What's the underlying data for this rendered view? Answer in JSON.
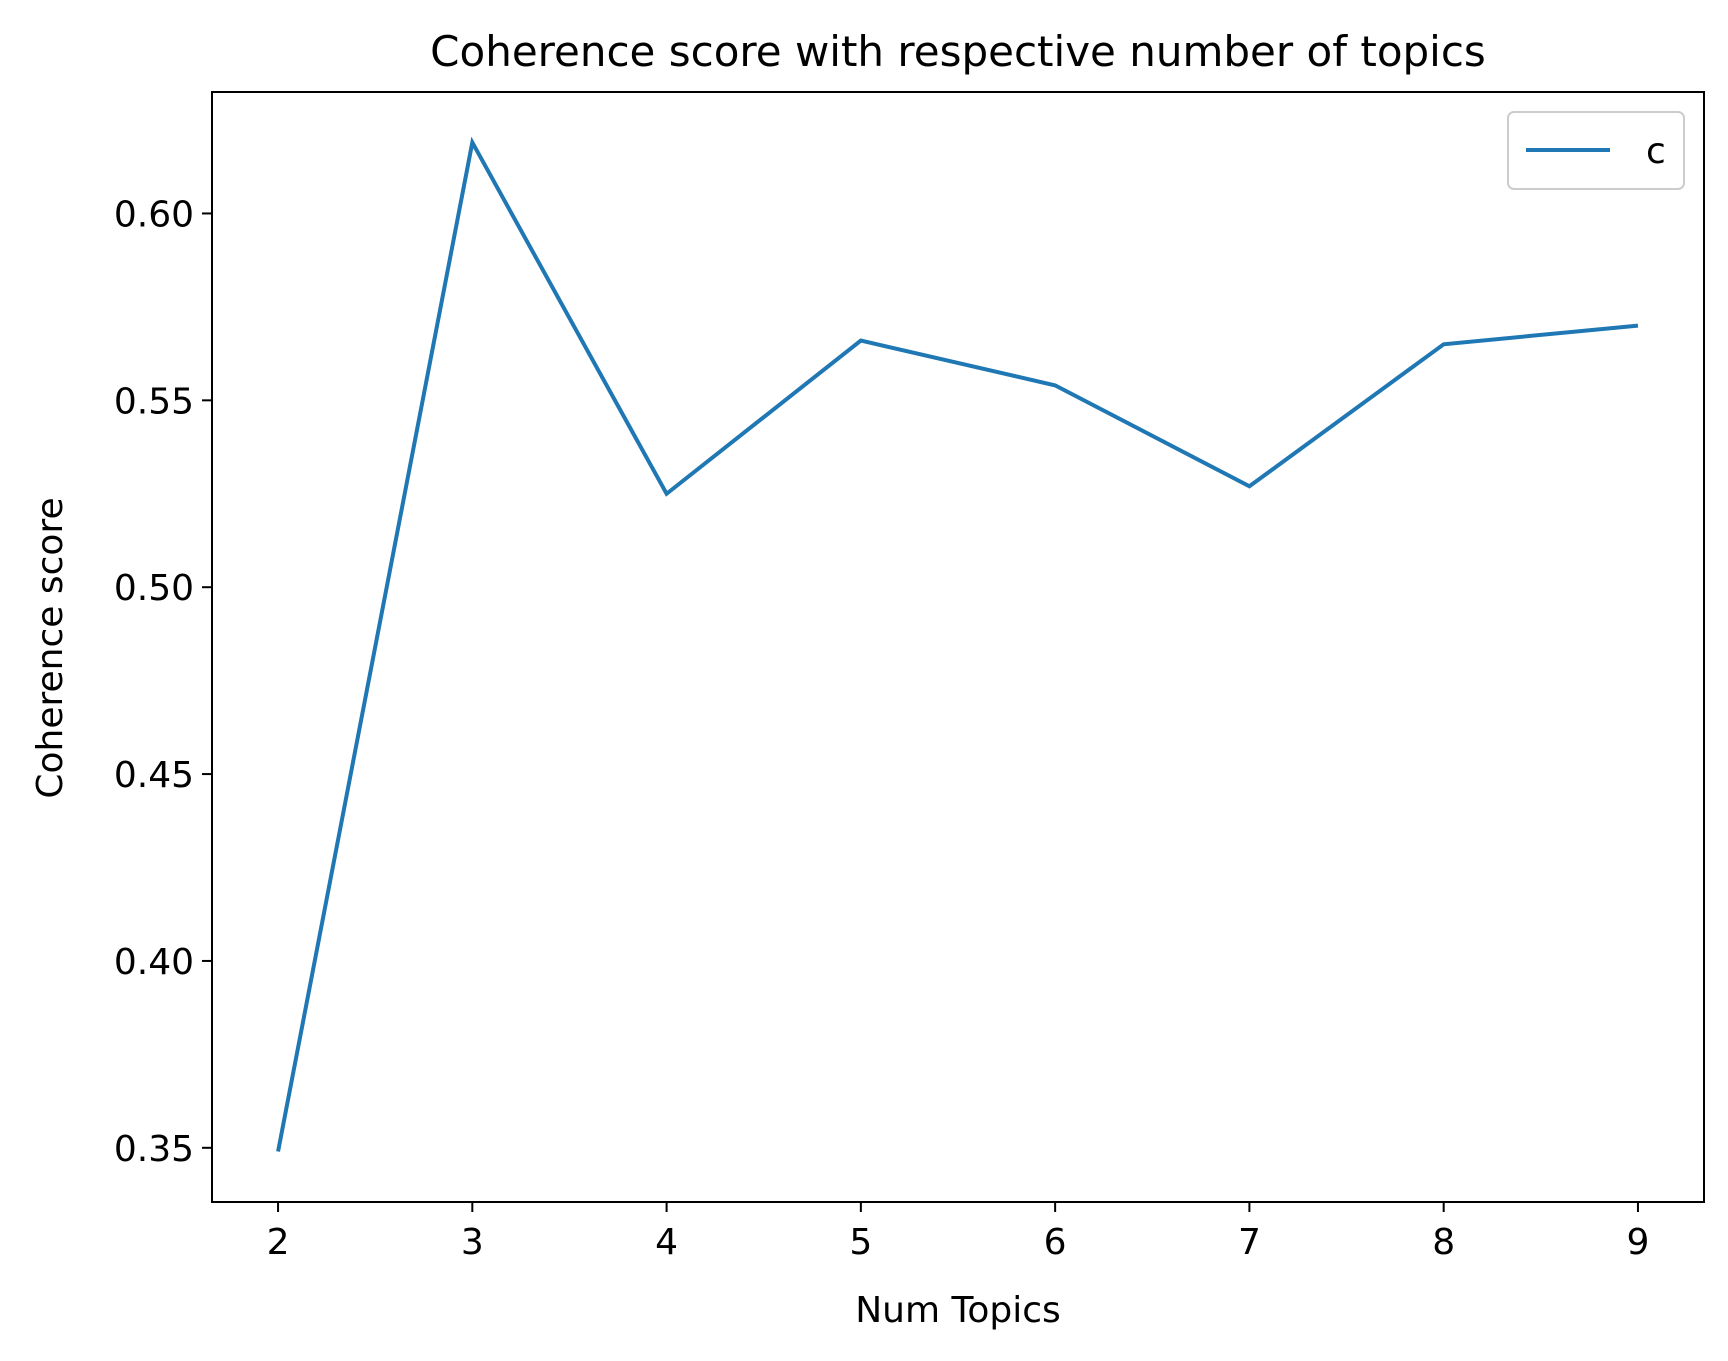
{
  "chart_data": {
    "type": "line",
    "title": "Coherence score with respective number of topics",
    "xlabel": "Num Topics",
    "ylabel": "Coherence score",
    "x": [
      2,
      3,
      4,
      5,
      6,
      7,
      8,
      9
    ],
    "series": [
      {
        "name": "c",
        "values": [
          0.349,
          0.619,
          0.525,
          0.566,
          0.554,
          0.527,
          0.565,
          0.57
        ],
        "color": "#1f77b4"
      }
    ],
    "xticks": [
      "2",
      "3",
      "4",
      "5",
      "6",
      "7",
      "8",
      "9"
    ],
    "yticks": [
      "0.35",
      "0.40",
      "0.45",
      "0.50",
      "0.55",
      "0.60"
    ],
    "ytick_values": [
      0.35,
      0.4,
      0.45,
      0.5,
      0.55,
      0.6
    ],
    "xlim": [
      1.66,
      9.34
    ],
    "ylim": [
      0.3355,
      0.6325
    ],
    "grid": false,
    "legend": "top-right"
  }
}
